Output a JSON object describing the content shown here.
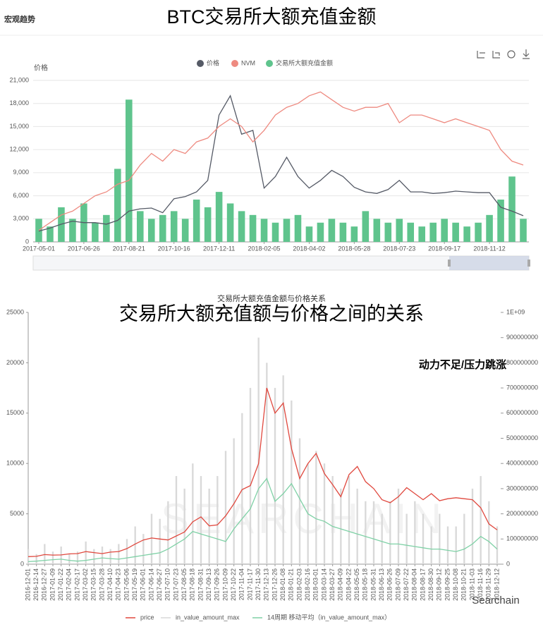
{
  "header": {
    "section": "宏观趋势",
    "title": "BTC交易所大额充值金额"
  },
  "watermark": "Searchain",
  "chart_data": [
    {
      "type": "combo",
      "y_label": "价格",
      "categories": [
        "2017-05-01",
        null,
        null,
        null,
        "2017-06-26",
        null,
        null,
        null,
        "2017-08-21",
        null,
        null,
        null,
        "2017-10-16",
        null,
        null,
        null,
        "2017-12-11",
        null,
        null,
        null,
        "2018-02-05",
        null,
        null,
        null,
        "2018-04-02",
        null,
        null,
        null,
        "2018-05-28",
        null,
        null,
        null,
        "2018-07-23",
        null,
        null,
        null,
        "2018-09-17",
        null,
        null,
        null,
        "2018-11-12",
        null,
        null,
        null
      ],
      "series": [
        {
          "name": "价格",
          "type": "line",
          "color": "#555a66",
          "values": [
            1400,
            1800,
            2300,
            2700,
            2500,
            2500,
            2300,
            2800,
            4000,
            4300,
            4400,
            3800,
            5600,
            5900,
            6500,
            8000,
            16500,
            19000,
            14000,
            14500,
            7000,
            8500,
            11000,
            8500,
            7000,
            8000,
            9300,
            8500,
            7100,
            6500,
            6300,
            6800,
            8000,
            6500,
            6500,
            6300,
            6400,
            6600,
            6500,
            6400,
            6400,
            4500,
            4000,
            3400
          ]
        },
        {
          "name": "NVM",
          "type": "line",
          "color": "#ee8a80",
          "values": [
            1500,
            2500,
            3500,
            4000,
            5000,
            6000,
            6500,
            7500,
            8000,
            10000,
            11500,
            10500,
            12000,
            11500,
            13000,
            13500,
            15000,
            16000,
            15000,
            13000,
            14500,
            16500,
            17500,
            18000,
            19000,
            19500,
            18500,
            17500,
            17000,
            17500,
            17500,
            18000,
            15500,
            16500,
            16500,
            16000,
            15500,
            16000,
            15500,
            15000,
            14500,
            12000,
            10500,
            10000
          ]
        },
        {
          "name": "交易所大额充值金额",
          "type": "bar",
          "color": "#5fc48d",
          "values": [
            3000,
            2000,
            4500,
            3000,
            5000,
            2500,
            3500,
            9500,
            18500,
            4000,
            3000,
            3500,
            4000,
            3000,
            5500,
            4500,
            6500,
            5000,
            4000,
            3500,
            3000,
            2500,
            3000,
            3500,
            2000,
            2500,
            3000,
            2500,
            2000,
            4000,
            3000,
            2500,
            3000,
            2500,
            2000,
            2500,
            3000,
            2500,
            2000,
            2500,
            3500,
            5500,
            8500,
            3000
          ]
        }
      ],
      "ylim": [
        0,
        21000
      ],
      "yticks": [
        0,
        {
          "value": 3000,
          "label": "3,000"
        },
        {
          "value": 6000,
          "label": "6,000"
        },
        {
          "value": 9000,
          "label": "9,000"
        },
        {
          "value": 12000,
          "label": "12,000"
        },
        {
          "value": 15000,
          "label": "15,000"
        },
        {
          "value": 18000,
          "label": "18,000"
        },
        {
          "value": 21000,
          "label": "21,000"
        }
      ],
      "grid": true
    },
    {
      "type": "combo",
      "title": "交易所大额充值金额与价格关系",
      "overlay_title": "交易所大额充值额与价格之间的关系",
      "annotation": "动力不足/压力跳涨",
      "watermark": "SEARCHAIN",
      "categories": [
        "2016-12-01",
        "2016-12-14",
        "2016-12-27",
        "2017-01-09",
        "2017-01-22",
        "2017-02-04",
        "2017-02-17",
        "2017-03-02",
        "2017-03-15",
        "2017-03-28",
        "2017-04-10",
        "2017-04-23",
        "2017-05-06",
        "2017-05-19",
        "2017-06-01",
        "2017-06-14",
        "2017-06-27",
        "2017-07-10",
        "2017-07-23",
        "2017-08-05",
        "2017-08-18",
        "2017-08-31",
        "2017-09-13",
        "2017-09-26",
        "2017-10-09",
        "2017-10-22",
        "2017-11-04",
        "2017-11-17",
        "2017-11-30",
        "2017-12-13",
        "2017-12-26",
        "2018-01-08",
        "2018-01-21",
        "2018-02-03",
        "2018-02-16",
        "2018-03-01",
        "2018-03-14",
        "2018-03-27",
        "2018-04-09",
        "2018-04-22",
        "2018-05-05",
        "2018-05-18",
        "2018-05-31",
        "2018-06-13",
        "2018-06-26",
        "2018-07-09",
        "2018-07-22",
        "2018-08-04",
        "2018-08-17",
        "2018-08-30",
        "2018-09-12",
        "2018-09-25",
        "2018-10-08",
        "2018-10-21",
        "2018-11-03",
        "2018-11-16",
        "2018-11-29",
        "2018-12-12"
      ],
      "series": [
        {
          "name": "price",
          "type": "line",
          "color": "#e0483e",
          "values": [
            750,
            780,
            950,
            900,
            920,
            1020,
            1050,
            1250,
            1150,
            1050,
            1200,
            1250,
            1550,
            2000,
            2400,
            2600,
            2500,
            2400,
            2800,
            3200,
            4200,
            4700,
            3800,
            3900,
            4800,
            6000,
            7400,
            7800,
            10000,
            17500,
            15000,
            16000,
            11500,
            8500,
            10000,
            11000,
            9000,
            7900,
            6700,
            8900,
            9700,
            8200,
            7500,
            6400,
            6100,
            6700,
            7600,
            7000,
            6400,
            7000,
            6300,
            6500,
            6600,
            6500,
            6400,
            5600,
            4000,
            3400
          ]
        },
        {
          "name": "in_value_amount_max",
          "type": "bar",
          "axis": "y2",
          "color": "#d9d9d9",
          "values": [
            60000000,
            40000000,
            80000000,
            50000000,
            70000000,
            40000000,
            50000000,
            90000000,
            60000000,
            70000000,
            60000000,
            80000000,
            100000000,
            150000000,
            120000000,
            200000000,
            180000000,
            250000000,
            350000000,
            300000000,
            400000000,
            350000000,
            300000000,
            350000000,
            450000000,
            500000000,
            600000000,
            700000000,
            900000000,
            800000000,
            700000000,
            750000000,
            650000000,
            500000000,
            400000000,
            450000000,
            400000000,
            350000000,
            300000000,
            350000000,
            300000000,
            250000000,
            250000000,
            200000000,
            250000000,
            300000000,
            200000000,
            250000000,
            200000000,
            150000000,
            200000000,
            150000000,
            150000000,
            200000000,
            300000000,
            350000000,
            250000000,
            150000000
          ]
        },
        {
          "name": "14周期 移动平均（in_value_amount_max）",
          "type": "line",
          "axis": "y2",
          "color": "#7fd1a6",
          "values": [
            10000000,
            12000000,
            15000000,
            18000000,
            20000000,
            15000000,
            12000000,
            15000000,
            20000000,
            25000000,
            22000000,
            20000000,
            25000000,
            30000000,
            35000000,
            40000000,
            45000000,
            60000000,
            80000000,
            100000000,
            130000000,
            120000000,
            110000000,
            100000000,
            90000000,
            140000000,
            180000000,
            220000000,
            300000000,
            340000000,
            250000000,
            280000000,
            320000000,
            260000000,
            200000000,
            180000000,
            170000000,
            150000000,
            140000000,
            130000000,
            120000000,
            110000000,
            100000000,
            90000000,
            80000000,
            80000000,
            75000000,
            70000000,
            65000000,
            60000000,
            60000000,
            55000000,
            50000000,
            60000000,
            80000000,
            110000000,
            90000000,
            60000000
          ]
        }
      ],
      "ylim": [
        0,
        25000
      ],
      "yticks": [
        0,
        5000,
        10000,
        15000,
        20000,
        25000
      ],
      "y2lim": [
        0,
        1000000000
      ],
      "y2ticks": [
        0,
        100000000,
        200000000,
        300000000,
        400000000,
        500000000,
        600000000,
        700000000,
        800000000,
        900000000,
        {
          "value": 1000000000,
          "label": "1E+09"
        }
      ],
      "grid": false
    }
  ]
}
